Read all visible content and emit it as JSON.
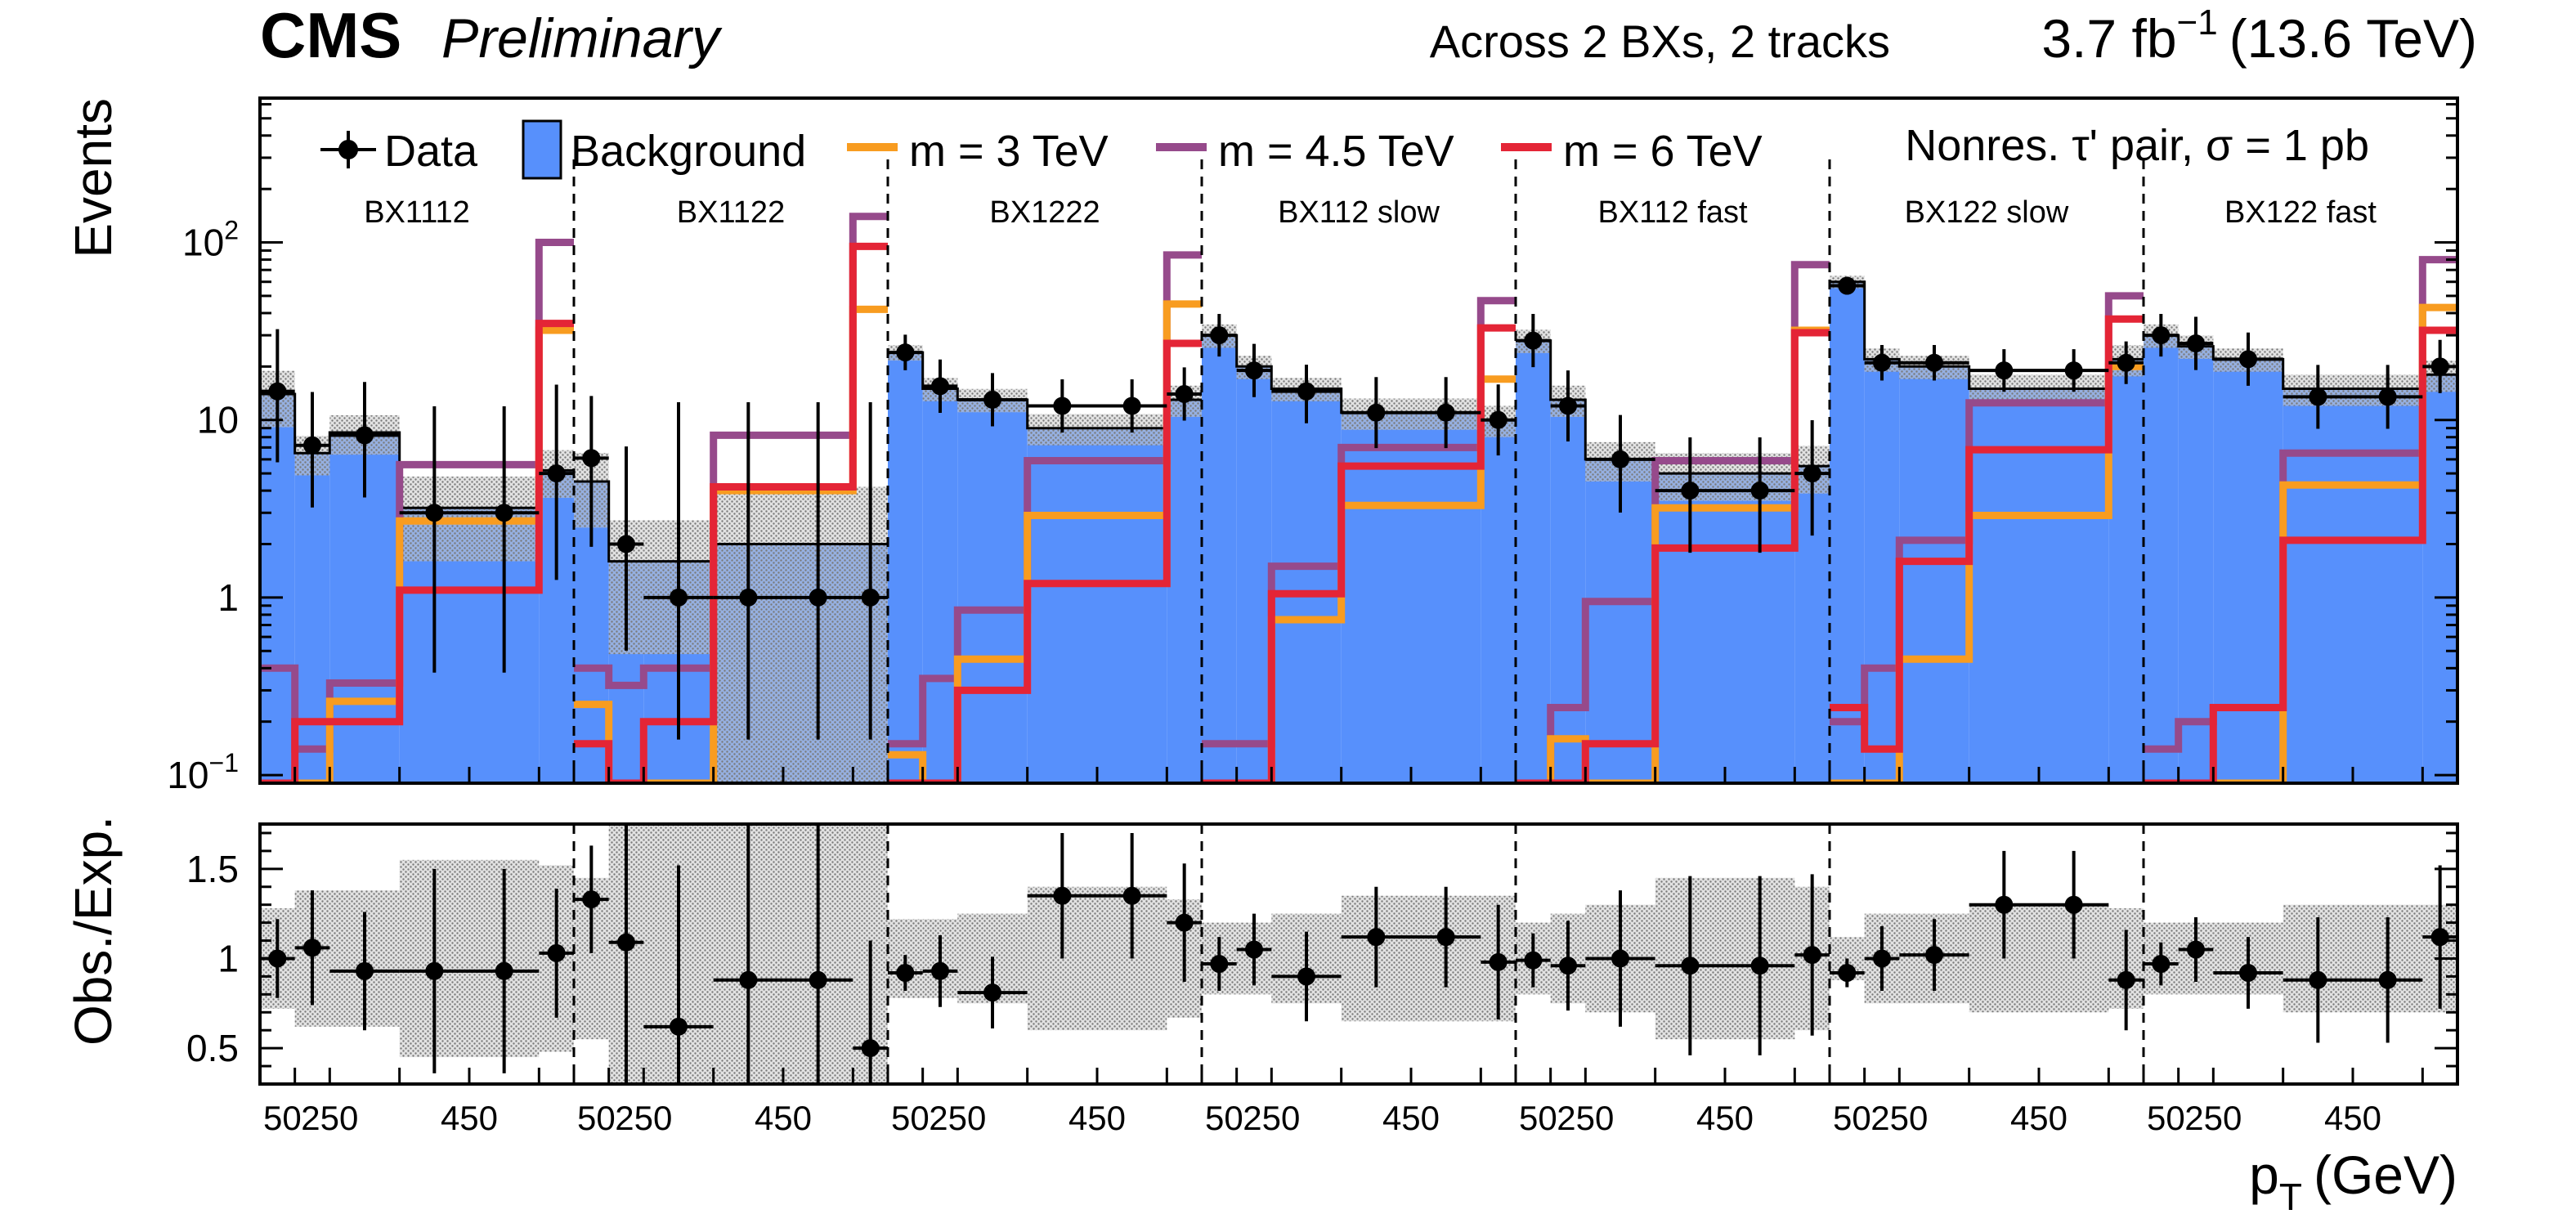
{
  "header": {
    "experiment": "CMS",
    "status": "Preliminary",
    "selection": "Across 2 BXs, 2 tracks",
    "lumi_value": "3.7 fb",
    "lumi_exponent": "−1",
    "energy": "(13.6 TeV)"
  },
  "chart_data": {
    "type": "histogram",
    "title": "",
    "xlabel_main": "p",
    "xlabel_sub": "T",
    "xlabel_unit": "(GeV)",
    "ylabel_top": "Events",
    "ylabel_bottom": "Obs./Exp.",
    "yscale_top": "log",
    "ylim_top": [
      0.09,
      650
    ],
    "ylim_bottom": [
      0.3,
      1.75
    ],
    "yticks_top": [
      {
        "value": 0.1,
        "label": "10",
        "exp": "−1"
      },
      {
        "value": 1,
        "label": "1",
        "exp": ""
      },
      {
        "value": 10,
        "label": "10",
        "exp": ""
      },
      {
        "value": 100,
        "label": "10",
        "exp": "2"
      }
    ],
    "yticks_bottom": [
      {
        "value": 0.5,
        "label": "0.5"
      },
      {
        "value": 1,
        "label": "1"
      },
      {
        "value": 1.5,
        "label": "1.5"
      }
    ],
    "xtick_labels": [
      "50",
      "250",
      "450"
    ],
    "bin_edges": [
      50,
      100,
      150,
      250,
      350,
      450,
      500
    ],
    "signal_note": "Nonres. τ' pair, σ = 1 pb",
    "legend_position": "top",
    "legend": [
      {
        "key": "data",
        "label": "Data"
      },
      {
        "key": "background",
        "label": "Background"
      },
      {
        "key": "m3",
        "label": "m = 3 TeV"
      },
      {
        "key": "m45",
        "label": "m = 4.5 TeV"
      },
      {
        "key": "m6",
        "label": "m = 6 TeV"
      }
    ],
    "colors": {
      "background": "#5790fc",
      "m3": "#f89c20",
      "m45": "#964a8b",
      "m6": "#e42536",
      "data": "#000000",
      "uncertainty": "#a8a8a8"
    },
    "categories": [
      {
        "name": "BX1112",
        "background": [
          14,
          6.5,
          8.5,
          3.2,
          3.2,
          5.2
        ],
        "bkg_unc": [
          0.35,
          0.25,
          0.25,
          0.5,
          0.5,
          0.3
        ],
        "m3": [
          0.09,
          0.09,
          0.26,
          2.7,
          2.7,
          32
        ],
        "m45": [
          0.4,
          0.14,
          0.33,
          5.6,
          5.6,
          100
        ],
        "m6": [
          0.09,
          0.2,
          0.2,
          1.1,
          1.1,
          35
        ],
        "data": [
          14.5,
          7.2,
          8.2,
          3,
          3,
          5
        ],
        "data_err_lo": [
          0.4,
          0.35,
          0.35,
          0.9,
          0.9,
          0.6
        ],
        "data_err_hi": [
          0.35,
          0.3,
          0.3,
          0.6,
          0.6,
          0.5
        ],
        "ratio": [
          1.0,
          1.06,
          0.93,
          0.93,
          0.93,
          1.03
        ],
        "ratio_err": [
          0.22,
          0.32,
          0.33,
          0.57,
          0.57,
          0.36
        ],
        "ratio_unc": [
          0.28,
          0.38,
          0.38,
          0.55,
          0.55,
          0.52
        ]
      },
      {
        "name": "BX1122",
        "background": [
          4.5,
          1.6,
          1.6,
          2.0,
          2.0,
          2.0
        ],
        "bkg_unc": [
          0.45,
          0.7,
          0.7,
          1.1,
          1.1,
          1.1
        ],
        "m3": [
          0.25,
          0.09,
          0.09,
          4.0,
          4.0,
          42
        ],
        "m45": [
          0.4,
          0.32,
          0.4,
          8.2,
          8.2,
          140
        ],
        "m6": [
          0.15,
          0.09,
          0.2,
          4.2,
          4.2,
          95
        ],
        "data": [
          6.1,
          2.0,
          1,
          1,
          1,
          1
        ],
        "data_err_lo": [
          0.5,
          0.6,
          0.8,
          0.8,
          0.8,
          0.8
        ],
        "data_err_hi": [
          0.35,
          0.55,
          1.1,
          1.1,
          1.1,
          1.1
        ],
        "ratio": [
          1.33,
          1.09,
          0.62,
          0.88,
          0.88,
          0.5
        ],
        "ratio_err": [
          0.3,
          0.8,
          0.9,
          0.9,
          0.9,
          0.6
        ],
        "ratio_unc": [
          0.45,
          0.9,
          1.1,
          1.2,
          1.2,
          1.3
        ]
      },
      {
        "name": "BX1222",
        "background": [
          24,
          15,
          13,
          9,
          9,
          13
        ],
        "bkg_unc": [
          0.1,
          0.15,
          0.15,
          0.2,
          0.2,
          0.2
        ],
        "m3": [
          0.13,
          0.09,
          0.45,
          2.9,
          2.9,
          45
        ],
        "m45": [
          0.15,
          0.35,
          0.85,
          5.9,
          5.9,
          85
        ],
        "m6": [
          0.09,
          0.09,
          0.3,
          1.2,
          1.2,
          27
        ],
        "data": [
          24,
          15.5,
          13,
          12,
          12,
          14
        ],
        "data_err_lo": [
          0.1,
          0.15,
          0.15,
          0.15,
          0.15,
          0.15
        ],
        "data_err_hi": [
          0.1,
          0.15,
          0.15,
          0.15,
          0.15,
          0.15
        ],
        "ratio": [
          0.92,
          0.93,
          0.81,
          1.35,
          1.35,
          1.2
        ],
        "ratio_err": [
          0.1,
          0.2,
          0.2,
          0.35,
          0.35,
          0.33
        ],
        "ratio_unc": [
          0.22,
          0.22,
          0.25,
          0.4,
          0.4,
          0.33
        ]
      },
      {
        "name": "BX112 slow",
        "background": [
          30,
          20,
          15,
          11,
          11,
          10
        ],
        "bkg_unc": [
          0.15,
          0.15,
          0.15,
          0.2,
          0.2,
          0.2
        ],
        "m3": [
          0.09,
          0.09,
          0.75,
          3.3,
          3.3,
          17
        ],
        "m45": [
          0.15,
          0.15,
          1.5,
          7,
          7,
          47
        ],
        "m6": [
          0.09,
          0.09,
          1.05,
          5.5,
          5.5,
          33
        ],
        "data": [
          30,
          19,
          14.5,
          11,
          11,
          10
        ],
        "data_err_lo": [
          0.12,
          0.15,
          0.18,
          0.2,
          0.2,
          0.2
        ],
        "data_err_hi": [
          0.12,
          0.15,
          0.15,
          0.2,
          0.2,
          0.2
        ],
        "ratio": [
          0.97,
          1.05,
          0.9,
          1.12,
          1.12,
          0.98
        ],
        "ratio_err": [
          0.15,
          0.2,
          0.25,
          0.28,
          0.28,
          0.32
        ],
        "ratio_unc": [
          0.2,
          0.2,
          0.25,
          0.35,
          0.35,
          0.35
        ]
      },
      {
        "name": "BX112 fast",
        "background": [
          28,
          13,
          6,
          5,
          5,
          5.5
        ],
        "bkg_unc": [
          0.15,
          0.2,
          0.25,
          0.3,
          0.3,
          0.3
        ],
        "m3": [
          0.09,
          0.16,
          0.09,
          3.2,
          3.2,
          32
        ],
        "m45": [
          0.09,
          0.24,
          0.95,
          5.9,
          5.9,
          75
        ],
        "m6": [
          0.09,
          0.09,
          0.15,
          1.9,
          1.9,
          31
        ],
        "data": [
          28,
          12,
          6,
          4,
          4,
          5
        ],
        "data_err_lo": [
          0.15,
          0.2,
          0.3,
          0.35,
          0.35,
          0.35
        ],
        "data_err_hi": [
          0.15,
          0.2,
          0.25,
          0.3,
          0.3,
          0.3
        ],
        "ratio": [
          0.99,
          0.96,
          1.0,
          0.96,
          0.96,
          1.02
        ],
        "ratio_err": [
          0.15,
          0.25,
          0.38,
          0.5,
          0.5,
          0.45
        ],
        "ratio_unc": [
          0.2,
          0.25,
          0.3,
          0.45,
          0.45,
          0.4
        ]
      },
      {
        "name": "BX122 slow",
        "background": [
          60,
          22,
          20,
          15,
          15,
          22
        ],
        "bkg_unc": [
          0.08,
          0.15,
          0.15,
          0.2,
          0.2,
          0.2
        ],
        "m3": [
          0.09,
          0.09,
          0.45,
          2.9,
          2.9,
          20
        ],
        "m45": [
          0.2,
          0.4,
          2.1,
          12.5,
          12.5,
          50
        ],
        "m6": [
          0.24,
          0.14,
          1.6,
          6.8,
          6.8,
          37
        ],
        "data": [
          57,
          21,
          21,
          19,
          19,
          21
        ],
        "data_err_lo": [
          0.05,
          0.1,
          0.1,
          0.12,
          0.12,
          0.12
        ],
        "data_err_hi": [
          0.05,
          0.1,
          0.1,
          0.12,
          0.12,
          0.12
        ],
        "ratio": [
          0.92,
          1.0,
          1.02,
          1.3,
          1.3,
          0.88
        ],
        "ratio_err": [
          0.08,
          0.18,
          0.2,
          0.3,
          0.3,
          0.28
        ],
        "ratio_unc": [
          0.12,
          0.25,
          0.25,
          0.3,
          0.3,
          0.28
        ]
      },
      {
        "name": "BX122 fast",
        "background": [
          30,
          26,
          22,
          15,
          15,
          18
        ],
        "bkg_unc": [
          0.15,
          0.15,
          0.15,
          0.2,
          0.2,
          0.2
        ],
        "m3": [
          0.09,
          0.09,
          0.09,
          4.3,
          4.3,
          43
        ],
        "m45": [
          0.14,
          0.2,
          0.24,
          6.5,
          6.5,
          80
        ],
        "m6": [
          0.09,
          0.09,
          0.24,
          2.1,
          2.1,
          32
        ],
        "data": [
          30,
          27,
          22,
          13.5,
          13.5,
          20
        ],
        "data_err_lo": [
          0.12,
          0.15,
          0.15,
          0.18,
          0.18,
          0.15
        ],
        "data_err_hi": [
          0.12,
          0.15,
          0.15,
          0.18,
          0.18,
          0.15
        ],
        "ratio": [
          0.97,
          1.05,
          0.92,
          0.88,
          0.88,
          1.12
        ],
        "ratio_err": [
          0.12,
          0.18,
          0.2,
          0.35,
          0.35,
          0.4
        ],
        "ratio_unc": [
          0.2,
          0.2,
          0.2,
          0.3,
          0.3,
          0.3
        ]
      }
    ]
  }
}
